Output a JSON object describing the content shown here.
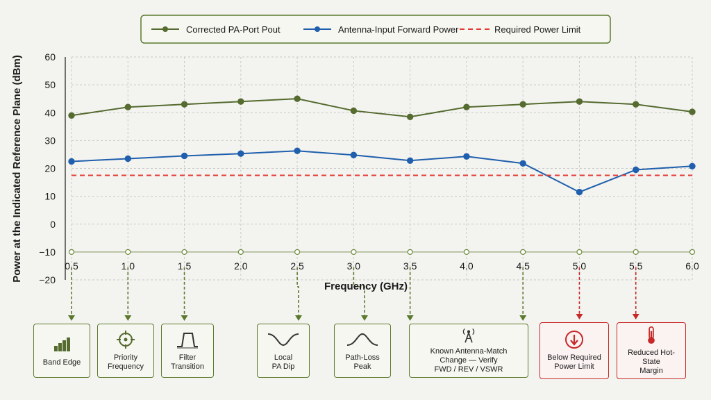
{
  "colors": {
    "corrected": "#556b2f",
    "antenna": "#1f5fad",
    "limit": "#e53935",
    "grid": "#c9c9c9",
    "green_arrow": "#5c7a2e",
    "red_arrow": "#c62828"
  },
  "chart_data": {
    "type": "line",
    "title": "",
    "xlabel": "Frequency (GHz)",
    "ylabel": "Power at the Indicated Reference Plane (dBm)",
    "xlim": [
      0.5,
      6.0
    ],
    "ylim": [
      -20,
      60
    ],
    "x_ticks": [
      "0.5",
      "1.0",
      "1.5",
      "2.0",
      "2.5",
      "3.0",
      "3.5",
      "4.0",
      "4.5",
      "5.0",
      "5.5",
      "6.0"
    ],
    "y_ticks": [
      "60",
      "50",
      "40",
      "30",
      "20",
      "10",
      "0",
      "−10",
      "−20"
    ],
    "y_tick_values": [
      60,
      50,
      40,
      30,
      20,
      10,
      0,
      -10,
      -20
    ],
    "grid": true,
    "legend_placement": "top-center",
    "x": [
      0.5,
      1.0,
      1.5,
      2.0,
      2.5,
      3.0,
      3.5,
      4.0,
      4.5,
      5.0,
      5.5,
      6.0
    ],
    "series": [
      {
        "name": "Corrected PA-Port Pout",
        "color": "#556b2f",
        "values": [
          39,
          42,
          43,
          44,
          45,
          40.7,
          38.5,
          42,
          43,
          44,
          43,
          40.3
        ]
      },
      {
        "name": "Antenna-Input Forward Power",
        "color": "#1f5fad",
        "values": [
          22.5,
          23.5,
          24.5,
          25.3,
          26.3,
          24.8,
          22.8,
          24.3,
          21.8,
          11.5,
          19.5,
          20.8
        ]
      },
      {
        "name": "Required Power Limit",
        "color": "#e53935",
        "style": "dashed",
        "constant": 17.5
      }
    ],
    "marker_row_value": -10,
    "annotation_x": [
      0.5,
      1.0,
      1.5,
      2.5,
      3.0,
      3.5,
      4.5,
      5.0,
      5.5
    ]
  },
  "annotations": [
    {
      "key": "band_edge",
      "label": "Band Edge",
      "x": 0.5,
      "icon": "bars-icon",
      "severity": "info"
    },
    {
      "key": "priority",
      "label": "Priority\nFrequency",
      "x": 1.0,
      "icon": "crosshair-icon",
      "severity": "info"
    },
    {
      "key": "filter",
      "label": "Filter\nTransition",
      "x": 1.5,
      "icon": "filter-shape-icon",
      "severity": "info"
    },
    {
      "key": "pa_dip",
      "label": "Local\nPA Dip",
      "x": 2.5,
      "icon": "dip-curve-icon",
      "severity": "info"
    },
    {
      "key": "path_loss",
      "label": "Path-Loss\nPeak",
      "x": 3.0,
      "icon": "peak-curve-icon",
      "severity": "info"
    },
    {
      "key": "antenna_match",
      "label": "Known Antenna-Match\nChange — Verify\nFWD / REV / VSWR",
      "x": 3.5,
      "x2": 4.5,
      "icon": "antenna-tower-icon",
      "severity": "info"
    },
    {
      "key": "below_limit",
      "label": "Below Required\nPower Limit",
      "x": 5.0,
      "icon": "down-arrow-circle-icon",
      "severity": "warn"
    },
    {
      "key": "hot_state",
      "label": "Reduced Hot-State\nMargin",
      "x": 5.5,
      "icon": "thermometer-icon",
      "severity": "warn"
    }
  ]
}
